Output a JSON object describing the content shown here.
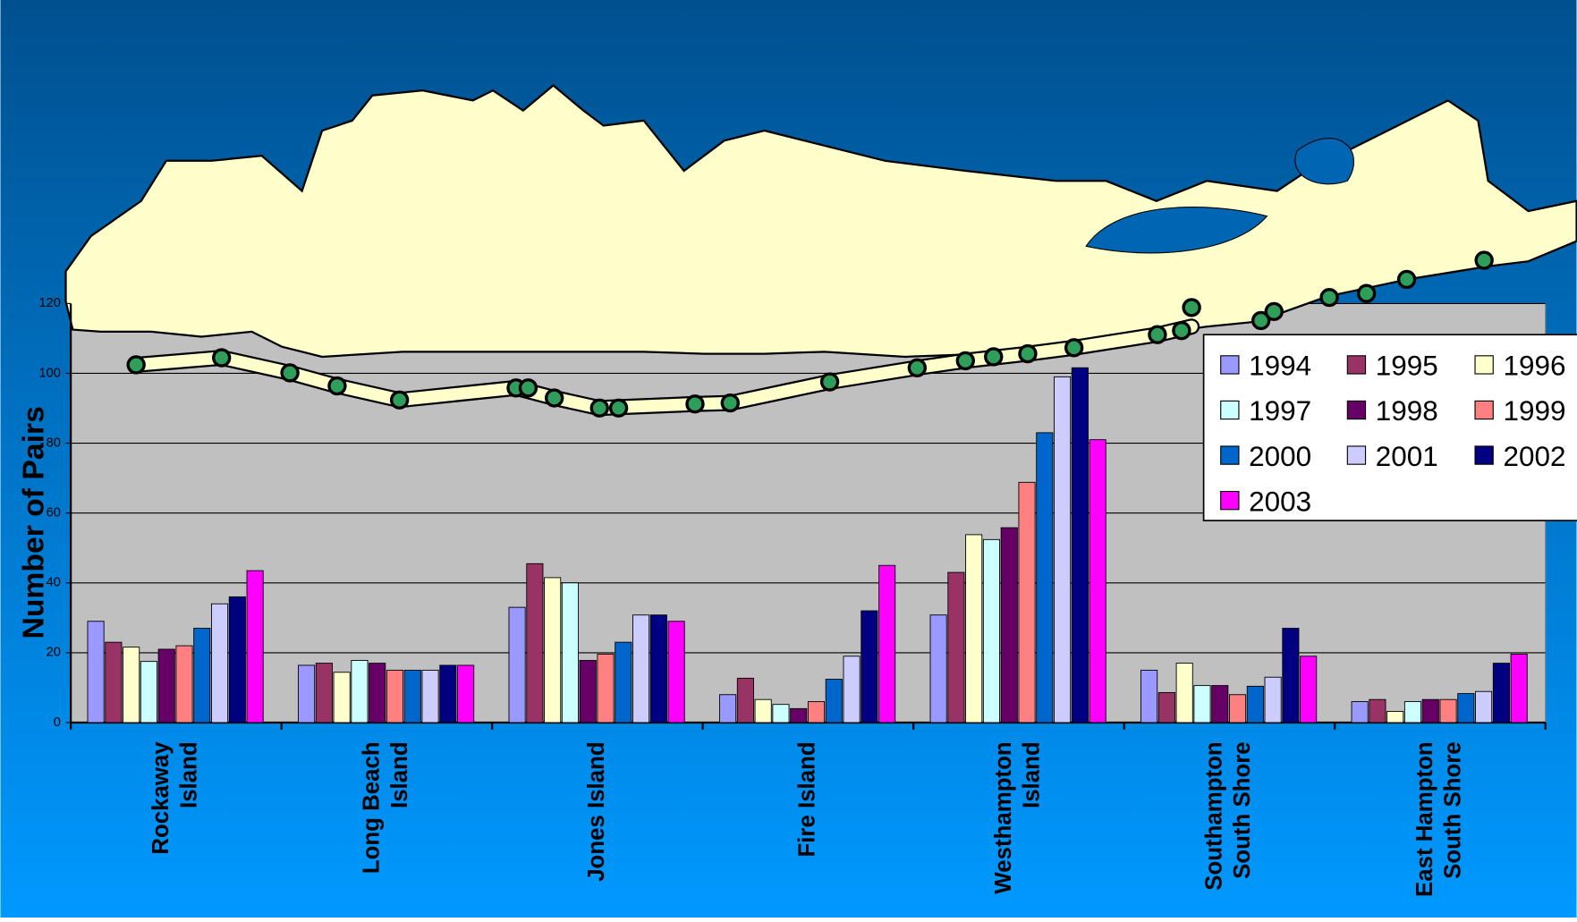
{
  "chart_data": {
    "type": "bar",
    "y_label": "Number of Pairs",
    "categories": [
      "Rockaway\nIsland",
      "Long Beach\nIsland",
      "Jones Island",
      "Fire Island",
      "Westhampton\nIsland",
      "Southampton\nSouth Shore",
      "East Hampton\nSouth Shore"
    ],
    "series": [
      {
        "name": "1994",
        "color": "#9999ff",
        "values": [
          29,
          16.4,
          33,
          8,
          30.8,
          15,
          6
        ]
      },
      {
        "name": "1995",
        "color": "#993366",
        "values": [
          23,
          17,
          45.5,
          12.7,
          43,
          8.6,
          6.6
        ]
      },
      {
        "name": "1996",
        "color": "#ffffcc",
        "values": [
          21.6,
          14.4,
          41.5,
          6.6,
          53.8,
          17,
          3.2
        ]
      },
      {
        "name": "1997",
        "color": "#ccffff",
        "values": [
          17.5,
          17.8,
          40,
          5.2,
          52.4,
          10.6,
          6
        ]
      },
      {
        "name": "1998",
        "color": "#660066",
        "values": [
          21,
          17,
          17.8,
          4,
          55.8,
          10.6,
          6.6
        ]
      },
      {
        "name": "1999",
        "color": "#ff8080",
        "values": [
          22,
          15,
          19.6,
          6,
          68.8,
          8,
          6.6
        ]
      },
      {
        "name": "2000",
        "color": "#0066cc",
        "values": [
          27,
          15,
          23,
          12.4,
          83,
          10.4,
          8.3
        ]
      },
      {
        "name": "2001",
        "color": "#ccccff",
        "values": [
          34,
          15,
          30.8,
          19,
          99,
          13,
          8.9
        ]
      },
      {
        "name": "2002",
        "color": "#000080",
        "values": [
          36,
          16.4,
          30.8,
          32,
          101.6,
          27,
          17
        ]
      },
      {
        "name": "2003",
        "color": "#ff00ff",
        "values": [
          43.5,
          16.4,
          29,
          45,
          81,
          19,
          19.6
        ]
      }
    ],
    "ylim": [
      0,
      120
    ],
    "yticks": [
      0,
      20,
      40,
      60,
      80,
      100,
      120
    ],
    "grid": true,
    "legend": "right"
  }
}
